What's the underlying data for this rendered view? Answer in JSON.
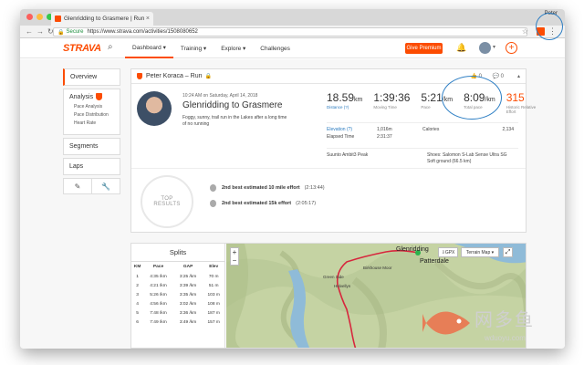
{
  "browser": {
    "tab_title": "Glenridding to Grasmere | Run",
    "tab_close": "×",
    "profile": "Peter",
    "secure_label": "Secure",
    "url": "https://www.strava.com/activities/1508080652"
  },
  "nav": {
    "logo": "STRAVA",
    "items": [
      {
        "label": "Dashboard ▾"
      },
      {
        "label": "Training ▾"
      },
      {
        "label": "Explore ▾"
      },
      {
        "label": "Challenges"
      }
    ],
    "premium": "Give Premium"
  },
  "sidemenu": {
    "overview": "Overview",
    "analysis": "Analysis",
    "analysis_items": [
      "Pace Analysis",
      "Pace Distribution",
      "Heart Rate"
    ],
    "segments": "Segments",
    "laps": "Laps"
  },
  "activity": {
    "header": "Peter Koraca – Run",
    "kudos": "0",
    "comments": "0",
    "date": "10:24 AM on Saturday, April 14, 2018",
    "title": "Glenridding to Grasmere",
    "description": "Foggy, sunny, trail run in the Lakes after a long time of no running",
    "stats": [
      {
        "value": "18.59",
        "unit": "km",
        "label": "Distance (?)",
        "link": true,
        "orange": false
      },
      {
        "value": "1:39:36",
        "unit": "",
        "label": "Moving Time",
        "link": false,
        "orange": false
      },
      {
        "value": "5:21",
        "unit": "/km",
        "label": "Pace",
        "link": false,
        "orange": false
      },
      {
        "value": "8:09",
        "unit": "/km",
        "label": "Total pace",
        "link": false,
        "orange": false
      },
      {
        "value": "315",
        "unit": "",
        "label": "Historic Relative Effort",
        "link": false,
        "orange": true
      }
    ],
    "details": {
      "elevation_label": "Elevation (?)",
      "elevation_value": "1,016m",
      "calories_label": "Calories",
      "calories_value": "2,134",
      "elapsed_label": "Elapsed Time",
      "elapsed_value": "2:31:37"
    },
    "device": "Suunto Ambit3 Peak",
    "shoes": "Shoes: Salomon S-Lab Sense Ultra SG",
    "ground": "Soft ground (66.5 km)"
  },
  "top_results": {
    "line1": "TOP",
    "line2": "RESULTS",
    "efforts": [
      {
        "text": "2nd best estimated 10 mile effort",
        "time": "(2:13:44)"
      },
      {
        "text": "2nd best estimated 15k effort",
        "time": "(2:05:17)"
      }
    ]
  },
  "splits": {
    "title": "Splits",
    "headers": [
      "KM",
      "Pace",
      "GAP",
      "Elev"
    ],
    "rows": [
      [
        "1",
        "4:35 /km",
        "3:25 /km",
        "70 m"
      ],
      [
        "2",
        "4:21 /km",
        "3:39 /km",
        "51 m"
      ],
      [
        "3",
        "5:26 /km",
        "3:35 /km",
        "103 m"
      ],
      [
        "4",
        "4:56 /km",
        "3:02 /km",
        "108 m"
      ],
      [
        "5",
        "7:48 /km",
        "3:36 /km",
        "187 m"
      ],
      [
        "6",
        "7:49 /km",
        "3:49 /km",
        "157 m"
      ]
    ]
  },
  "map": {
    "gpx": "GPX",
    "terrain": "Terrain Map ▾",
    "places": [
      "Glenridding",
      "Patterdale",
      "Birkhouse Moor",
      "Helvellyn",
      "Green Side"
    ]
  },
  "watermark": {
    "text": "网多鱼",
    "site": "wduoyu.com"
  }
}
